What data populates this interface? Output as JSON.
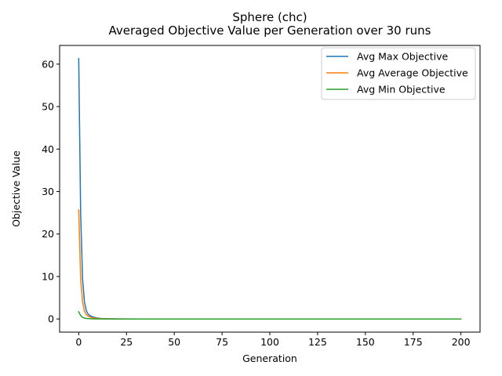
{
  "chart_data": {
    "type": "line",
    "title": "Sphere (chc)",
    "subtitle": "Averaged Objective Value per Generation over 30 runs",
    "xlabel": "Generation",
    "ylabel": "Objective Value",
    "xlim": [
      -10,
      210
    ],
    "ylim": [
      -3.1,
      64.4
    ],
    "xticks": [
      0,
      25,
      50,
      75,
      100,
      125,
      150,
      175,
      200
    ],
    "yticks": [
      0,
      10,
      20,
      30,
      40,
      50,
      60
    ],
    "grid": false,
    "legend_position": "top-right",
    "series": [
      {
        "name": "Avg Max Objective",
        "color": "#1f77b4",
        "x": [
          0,
          1,
          2,
          3,
          4,
          5,
          6,
          7,
          8,
          10,
          12,
          15,
          20,
          30,
          50,
          100,
          150,
          200
        ],
        "y": [
          61.3,
          25.0,
          9.5,
          4.0,
          1.9,
          1.1,
          0.75,
          0.55,
          0.4,
          0.2,
          0.1,
          0.05,
          0.02,
          0.0,
          0.0,
          0.0,
          0.0,
          0.0
        ]
      },
      {
        "name": "Avg Average Objective",
        "color": "#ff7f0e",
        "x": [
          0,
          1,
          2,
          3,
          4,
          5,
          6,
          7,
          8,
          10,
          12,
          15,
          20,
          30,
          50,
          100,
          150,
          200
        ],
        "y": [
          25.7,
          9.5,
          4.0,
          1.8,
          1.0,
          0.65,
          0.45,
          0.3,
          0.22,
          0.12,
          0.06,
          0.03,
          0.01,
          0.0,
          0.0,
          0.0,
          0.0,
          0.0
        ]
      },
      {
        "name": "Avg Min Objective",
        "color": "#2ca02c",
        "x": [
          0,
          1,
          2,
          3,
          4,
          5,
          6,
          7,
          8,
          10,
          12,
          15,
          20,
          30,
          50,
          100,
          150,
          200
        ],
        "y": [
          1.7,
          0.8,
          0.4,
          0.2,
          0.12,
          0.08,
          0.05,
          0.03,
          0.02,
          0.01,
          0.005,
          0.0,
          0.0,
          0.0,
          0.0,
          0.0,
          0.0,
          0.0
        ]
      }
    ]
  }
}
